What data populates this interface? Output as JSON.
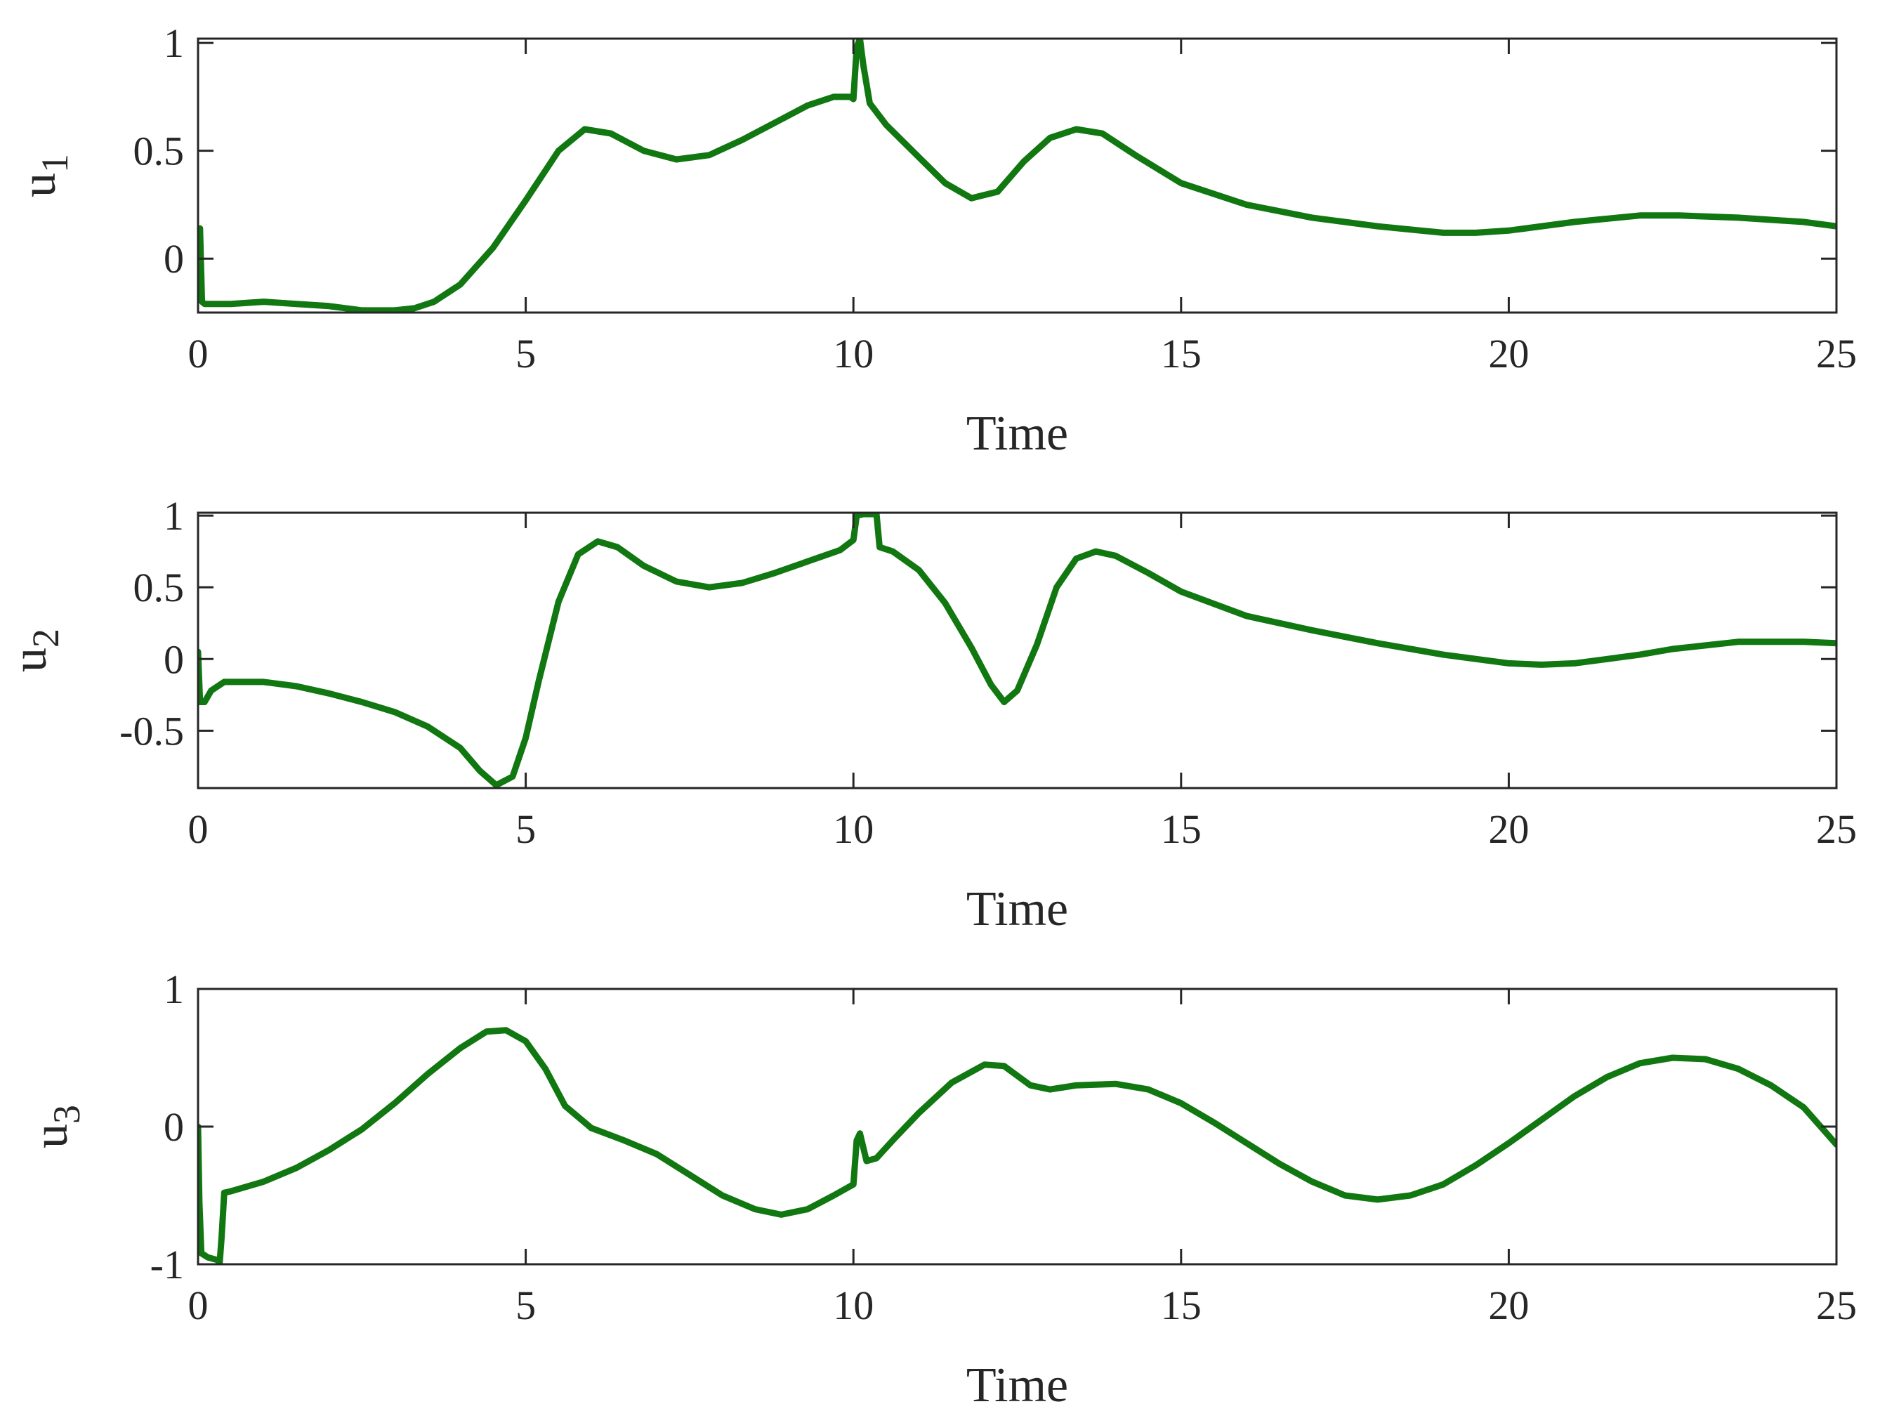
{
  "colors": {
    "line": "#117711",
    "axis": "#262626",
    "background": "#ffffff"
  },
  "chart_data": [
    {
      "type": "line",
      "xlabel": "Time",
      "ylabel": "u",
      "ylabel_sub": "1",
      "xlim": [
        0,
        25
      ],
      "ylim": [
        -0.25,
        1.02
      ],
      "xticks": [
        0,
        5,
        10,
        15,
        20,
        25
      ],
      "xtick_labels": [
        "0",
        "5",
        "10",
        "15",
        "20",
        "25"
      ],
      "yticks": [
        0,
        0.5,
        1
      ],
      "ytick_labels": [
        "0",
        "0.5",
        "1"
      ],
      "grid": false,
      "series": [
        {
          "x": [
            0,
            0.03,
            0.06,
            0.1,
            0.5,
            1,
            1.5,
            2,
            2.5,
            3,
            3.3,
            3.6,
            4,
            4.5,
            5,
            5.5,
            5.9,
            6.3,
            6.8,
            7.3,
            7.8,
            8.3,
            8.8,
            9.3,
            9.7,
            9.95,
            10.0,
            10.05,
            10.1,
            10.15,
            10.25,
            10.5,
            11,
            11.4,
            11.8,
            12.2,
            12.6,
            13,
            13.4,
            13.8,
            14.3,
            15,
            16,
            17,
            18,
            19,
            19.5,
            20,
            21,
            22,
            22.6,
            23.5,
            24.5,
            25
          ],
          "y": [
            0,
            0.14,
            -0.2,
            -0.21,
            -0.21,
            -0.2,
            -0.21,
            -0.22,
            -0.24,
            -0.24,
            -0.23,
            -0.2,
            -0.12,
            0.05,
            0.27,
            0.5,
            0.6,
            0.58,
            0.5,
            0.46,
            0.48,
            0.55,
            0.63,
            0.71,
            0.75,
            0.75,
            0.74,
            0.98,
            1.02,
            0.9,
            0.72,
            0.62,
            0.47,
            0.35,
            0.28,
            0.31,
            0.45,
            0.56,
            0.6,
            0.58,
            0.48,
            0.35,
            0.25,
            0.19,
            0.15,
            0.12,
            0.12,
            0.13,
            0.17,
            0.2,
            0.2,
            0.19,
            0.17,
            0.15
          ]
        }
      ]
    },
    {
      "type": "line",
      "xlabel": "Time",
      "ylabel": "u",
      "ylabel_sub": "2",
      "xlim": [
        0,
        25
      ],
      "ylim": [
        -0.9,
        1.02
      ],
      "xticks": [
        0,
        5,
        10,
        15,
        20,
        25
      ],
      "xtick_labels": [
        "0",
        "5",
        "10",
        "15",
        "20",
        "25"
      ],
      "yticks": [
        -0.5,
        0,
        0.5,
        1
      ],
      "ytick_labels": [
        "-0.5",
        "0",
        "0.5",
        "1"
      ],
      "grid": false,
      "series": [
        {
          "x": [
            0,
            0.03,
            0.1,
            0.2,
            0.4,
            1,
            1.5,
            2,
            2.5,
            3,
            3.5,
            4,
            4.3,
            4.55,
            4.8,
            5.0,
            5.2,
            5.5,
            5.8,
            6.1,
            6.4,
            6.8,
            7.3,
            7.8,
            8.3,
            8.8,
            9.3,
            9.8,
            10.0,
            10.05,
            10.15,
            10.3,
            10.35,
            10.4,
            10.6,
            11,
            11.4,
            11.8,
            12.1,
            12.3,
            12.5,
            12.8,
            13.1,
            13.4,
            13.7,
            14,
            14.5,
            15,
            16,
            17,
            18,
            19,
            20,
            20.5,
            21,
            21.5,
            22,
            22.5,
            23.5,
            24.5,
            25
          ],
          "y": [
            0.05,
            -0.3,
            -0.3,
            -0.22,
            -0.16,
            -0.16,
            -0.19,
            -0.24,
            -0.3,
            -0.37,
            -0.47,
            -0.62,
            -0.78,
            -0.88,
            -0.82,
            -0.55,
            -0.15,
            0.4,
            0.73,
            0.82,
            0.78,
            0.65,
            0.54,
            0.5,
            0.53,
            0.6,
            0.68,
            0.76,
            0.83,
            1.0,
            1.01,
            1.01,
            1.02,
            0.78,
            0.75,
            0.62,
            0.39,
            0.08,
            -0.18,
            -0.3,
            -0.22,
            0.1,
            0.5,
            0.7,
            0.75,
            0.72,
            0.6,
            0.47,
            0.3,
            0.2,
            0.11,
            0.03,
            -0.03,
            -0.04,
            -0.03,
            0.0,
            0.03,
            0.07,
            0.12,
            0.12,
            0.11
          ]
        }
      ]
    },
    {
      "type": "line",
      "xlabel": "Time",
      "ylabel": "u",
      "ylabel_sub": "3",
      "xlim": [
        0,
        25
      ],
      "ylim": [
        -1,
        1
      ],
      "xticks": [
        0,
        5,
        10,
        15,
        20,
        25
      ],
      "xtick_labels": [
        "0",
        "5",
        "10",
        "15",
        "20",
        "25"
      ],
      "yticks": [
        -1,
        0,
        1
      ],
      "ytick_labels": [
        "-1",
        "0",
        "1"
      ],
      "grid": false,
      "series": [
        {
          "x": [
            0,
            0.02,
            0.05,
            0.15,
            0.3,
            0.33,
            0.36,
            0.4,
            0.5,
            1,
            1.5,
            2,
            2.5,
            3,
            3.5,
            4,
            4.4,
            4.7,
            5,
            5.3,
            5.6,
            6,
            6.5,
            7,
            7.5,
            8,
            8.5,
            8.9,
            9.3,
            9.7,
            10.0,
            10.05,
            10.1,
            10.15,
            10.2,
            10.35,
            10.6,
            11,
            11.5,
            12,
            12.3,
            12.7,
            13,
            13.4,
            14,
            14.5,
            15,
            15.5,
            16,
            16.5,
            17,
            17.5,
            18,
            18.5,
            19,
            19.5,
            20,
            20.5,
            21,
            21.5,
            22,
            22.5,
            23,
            23.5,
            24,
            24.5,
            25
          ],
          "y": [
            0,
            -0.55,
            -0.92,
            -0.95,
            -0.97,
            -0.99,
            -0.8,
            -0.48,
            -0.47,
            -0.4,
            -0.3,
            -0.17,
            -0.02,
            0.17,
            0.38,
            0.57,
            0.69,
            0.7,
            0.62,
            0.42,
            0.15,
            -0.01,
            -0.1,
            -0.2,
            -0.35,
            -0.5,
            -0.6,
            -0.64,
            -0.6,
            -0.5,
            -0.42,
            -0.1,
            -0.05,
            -0.15,
            -0.25,
            -0.23,
            -0.1,
            0.1,
            0.32,
            0.45,
            0.44,
            0.3,
            0.27,
            0.3,
            0.31,
            0.27,
            0.17,
            0.03,
            -0.12,
            -0.27,
            -0.4,
            -0.5,
            -0.53,
            -0.5,
            -0.42,
            -0.28,
            -0.12,
            0.05,
            0.22,
            0.36,
            0.46,
            0.5,
            0.49,
            0.42,
            0.3,
            0.14,
            -0.13
          ]
        }
      ]
    }
  ]
}
